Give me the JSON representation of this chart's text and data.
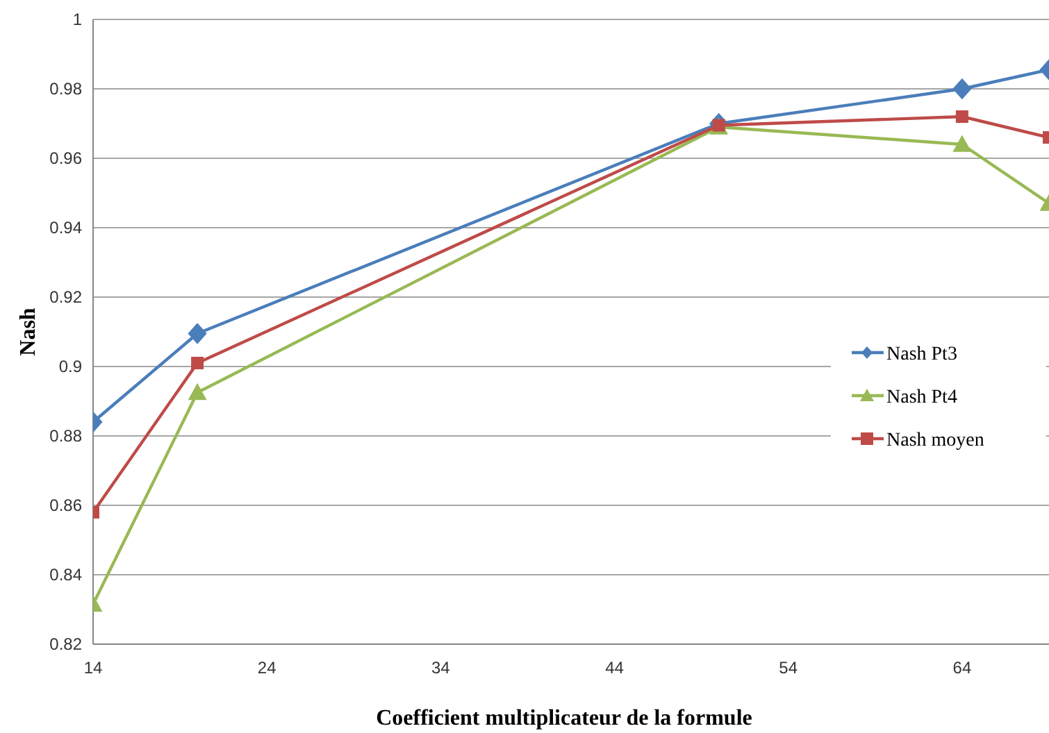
{
  "chart_data": {
    "type": "line",
    "xlabel": "Coefficient multiplicateur de la formule",
    "ylabel": "Nash",
    "x": [
      14,
      20,
      50,
      64,
      69
    ],
    "xlim": [
      14,
      69
    ],
    "xticks": [
      14,
      24,
      34,
      44,
      54,
      64
    ],
    "ylim": [
      0.82,
      1
    ],
    "yticks": [
      0.82,
      0.84,
      0.86,
      0.88,
      0.9,
      0.92,
      0.94,
      0.96,
      0.98,
      1
    ],
    "grid": "y",
    "legend": "right",
    "line_style": "solid",
    "series": [
      {
        "name": "Nash Pt3",
        "color": "#4a7ebb",
        "marker": "diamond",
        "values": [
          0.884,
          0.9095,
          0.97,
          0.98,
          0.9855
        ]
      },
      {
        "name": "Nash Pt4",
        "color": "#98b954",
        "marker": "triangle",
        "values": [
          0.8315,
          0.8925,
          0.969,
          0.964,
          0.947
        ]
      },
      {
        "name": "Nash moyen",
        "color": "#be4b48",
        "marker": "square",
        "values": [
          0.858,
          0.901,
          0.9695,
          0.972,
          0.966
        ]
      }
    ]
  }
}
